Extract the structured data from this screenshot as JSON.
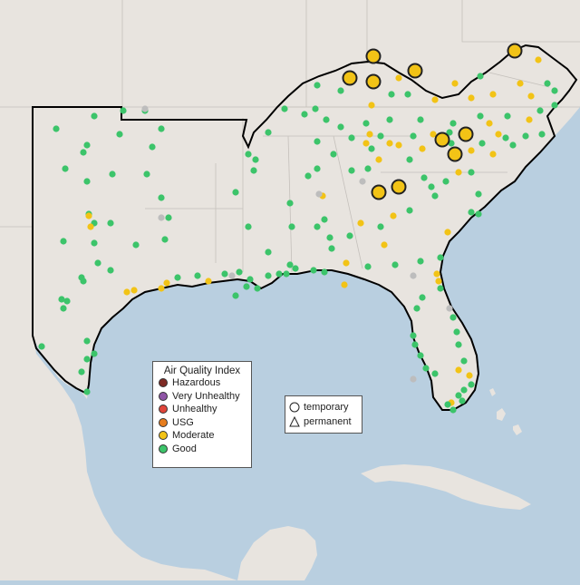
{
  "map": {
    "ocean_color": "#b9cfe0",
    "land_color": "#e8e4df",
    "region_outline_color": "#000000",
    "marker_outline_color": "#222222"
  },
  "legend_aqi": {
    "title": "Air Quality Index",
    "items": [
      {
        "label": "Hazardous",
        "color": "#7e2a24"
      },
      {
        "label": "Very Unhealthy",
        "color": "#8f55a6"
      },
      {
        "label": "Unhealthy",
        "color": "#e0453b"
      },
      {
        "label": "USG",
        "color": "#e67d1e"
      },
      {
        "label": "Moderate",
        "color": "#f2c316"
      },
      {
        "label": "Good",
        "color": "#3cc46a"
      }
    ]
  },
  "legend_monitor_type": {
    "items": [
      {
        "label": "temporary",
        "icon": "circle-icon"
      },
      {
        "label": "permanent",
        "icon": "triangle-icon"
      }
    ]
  },
  "station_levels": {
    "no_data_color": "#bdbdbd",
    "large_marker_level": "Moderate"
  }
}
